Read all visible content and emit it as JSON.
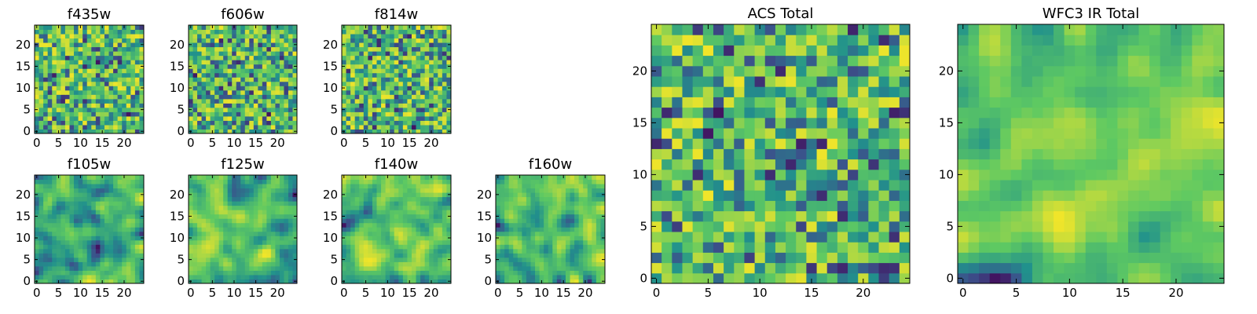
{
  "chart_data": [
    {
      "type": "heatmap",
      "title": "f435w",
      "xticks": [
        "0",
        "5",
        "10",
        "15",
        "20"
      ],
      "yticks": [
        "0",
        "5",
        "10",
        "15",
        "20"
      ],
      "grid_size": 25,
      "xlim": [
        0,
        24
      ],
      "ylim": [
        0,
        24
      ],
      "texture": "fine",
      "seed": 11
    },
    {
      "type": "heatmap",
      "title": "f606w",
      "xticks": [
        "0",
        "5",
        "10",
        "15",
        "20"
      ],
      "yticks": [
        "0",
        "5",
        "10",
        "15",
        "20"
      ],
      "grid_size": 25,
      "xlim": [
        0,
        24
      ],
      "ylim": [
        0,
        24
      ],
      "texture": "fine",
      "seed": 23
    },
    {
      "type": "heatmap",
      "title": "f814w",
      "xticks": [
        "0",
        "5",
        "10",
        "15",
        "20"
      ],
      "yticks": [
        "0",
        "5",
        "10",
        "15",
        "20"
      ],
      "grid_size": 25,
      "xlim": [
        0,
        24
      ],
      "ylim": [
        0,
        24
      ],
      "texture": "fine",
      "seed": 37
    },
    {
      "type": "heatmap",
      "title": "f105w",
      "xticks": [
        "0",
        "5",
        "10",
        "15",
        "20"
      ],
      "yticks": [
        "0",
        "5",
        "10",
        "15",
        "20"
      ],
      "grid_size": 25,
      "xlim": [
        0,
        24
      ],
      "ylim": [
        0,
        24
      ],
      "texture": "smooth",
      "seed": 41
    },
    {
      "type": "heatmap",
      "title": "f125w",
      "xticks": [
        "0",
        "5",
        "10",
        "15",
        "20"
      ],
      "yticks": [
        "0",
        "5",
        "10",
        "15",
        "20"
      ],
      "grid_size": 25,
      "xlim": [
        0,
        24
      ],
      "ylim": [
        0,
        24
      ],
      "texture": "smooth",
      "seed": 53
    },
    {
      "type": "heatmap",
      "title": "f140w",
      "xticks": [
        "0",
        "5",
        "10",
        "15",
        "20"
      ],
      "yticks": [
        "0",
        "5",
        "10",
        "15",
        "20"
      ],
      "grid_size": 25,
      "xlim": [
        0,
        24
      ],
      "ylim": [
        0,
        24
      ],
      "texture": "smooth",
      "seed": 67
    },
    {
      "type": "heatmap",
      "title": "f160w",
      "xticks": [
        "0",
        "5",
        "10",
        "15",
        "20"
      ],
      "yticks": [
        "0",
        "5",
        "10",
        "15",
        "20"
      ],
      "grid_size": 25,
      "xlim": [
        0,
        24
      ],
      "ylim": [
        0,
        24
      ],
      "texture": "smooth",
      "seed": 79
    },
    {
      "type": "heatmap",
      "title": "ACS Total",
      "xticks": [
        "0",
        "5",
        "10",
        "15",
        "20"
      ],
      "yticks": [
        "0",
        "5",
        "10",
        "15",
        "20"
      ],
      "grid_size": 25,
      "xlim": [
        0,
        24
      ],
      "ylim": [
        0,
        24
      ],
      "texture": "fine",
      "seed": 83
    },
    {
      "type": "heatmap",
      "title": "WFC3 IR Total",
      "xticks": [
        "0",
        "5",
        "10",
        "15",
        "20"
      ],
      "yticks": [
        "0",
        "5",
        "10",
        "15",
        "20"
      ],
      "grid_size": 25,
      "xlim": [
        0,
        24
      ],
      "ylim": [
        0,
        24
      ],
      "texture": "smooth",
      "seed": 97
    }
  ],
  "colormap": [
    "#440154",
    "#3b528b",
    "#21918c",
    "#5ec962",
    "#fde725"
  ]
}
